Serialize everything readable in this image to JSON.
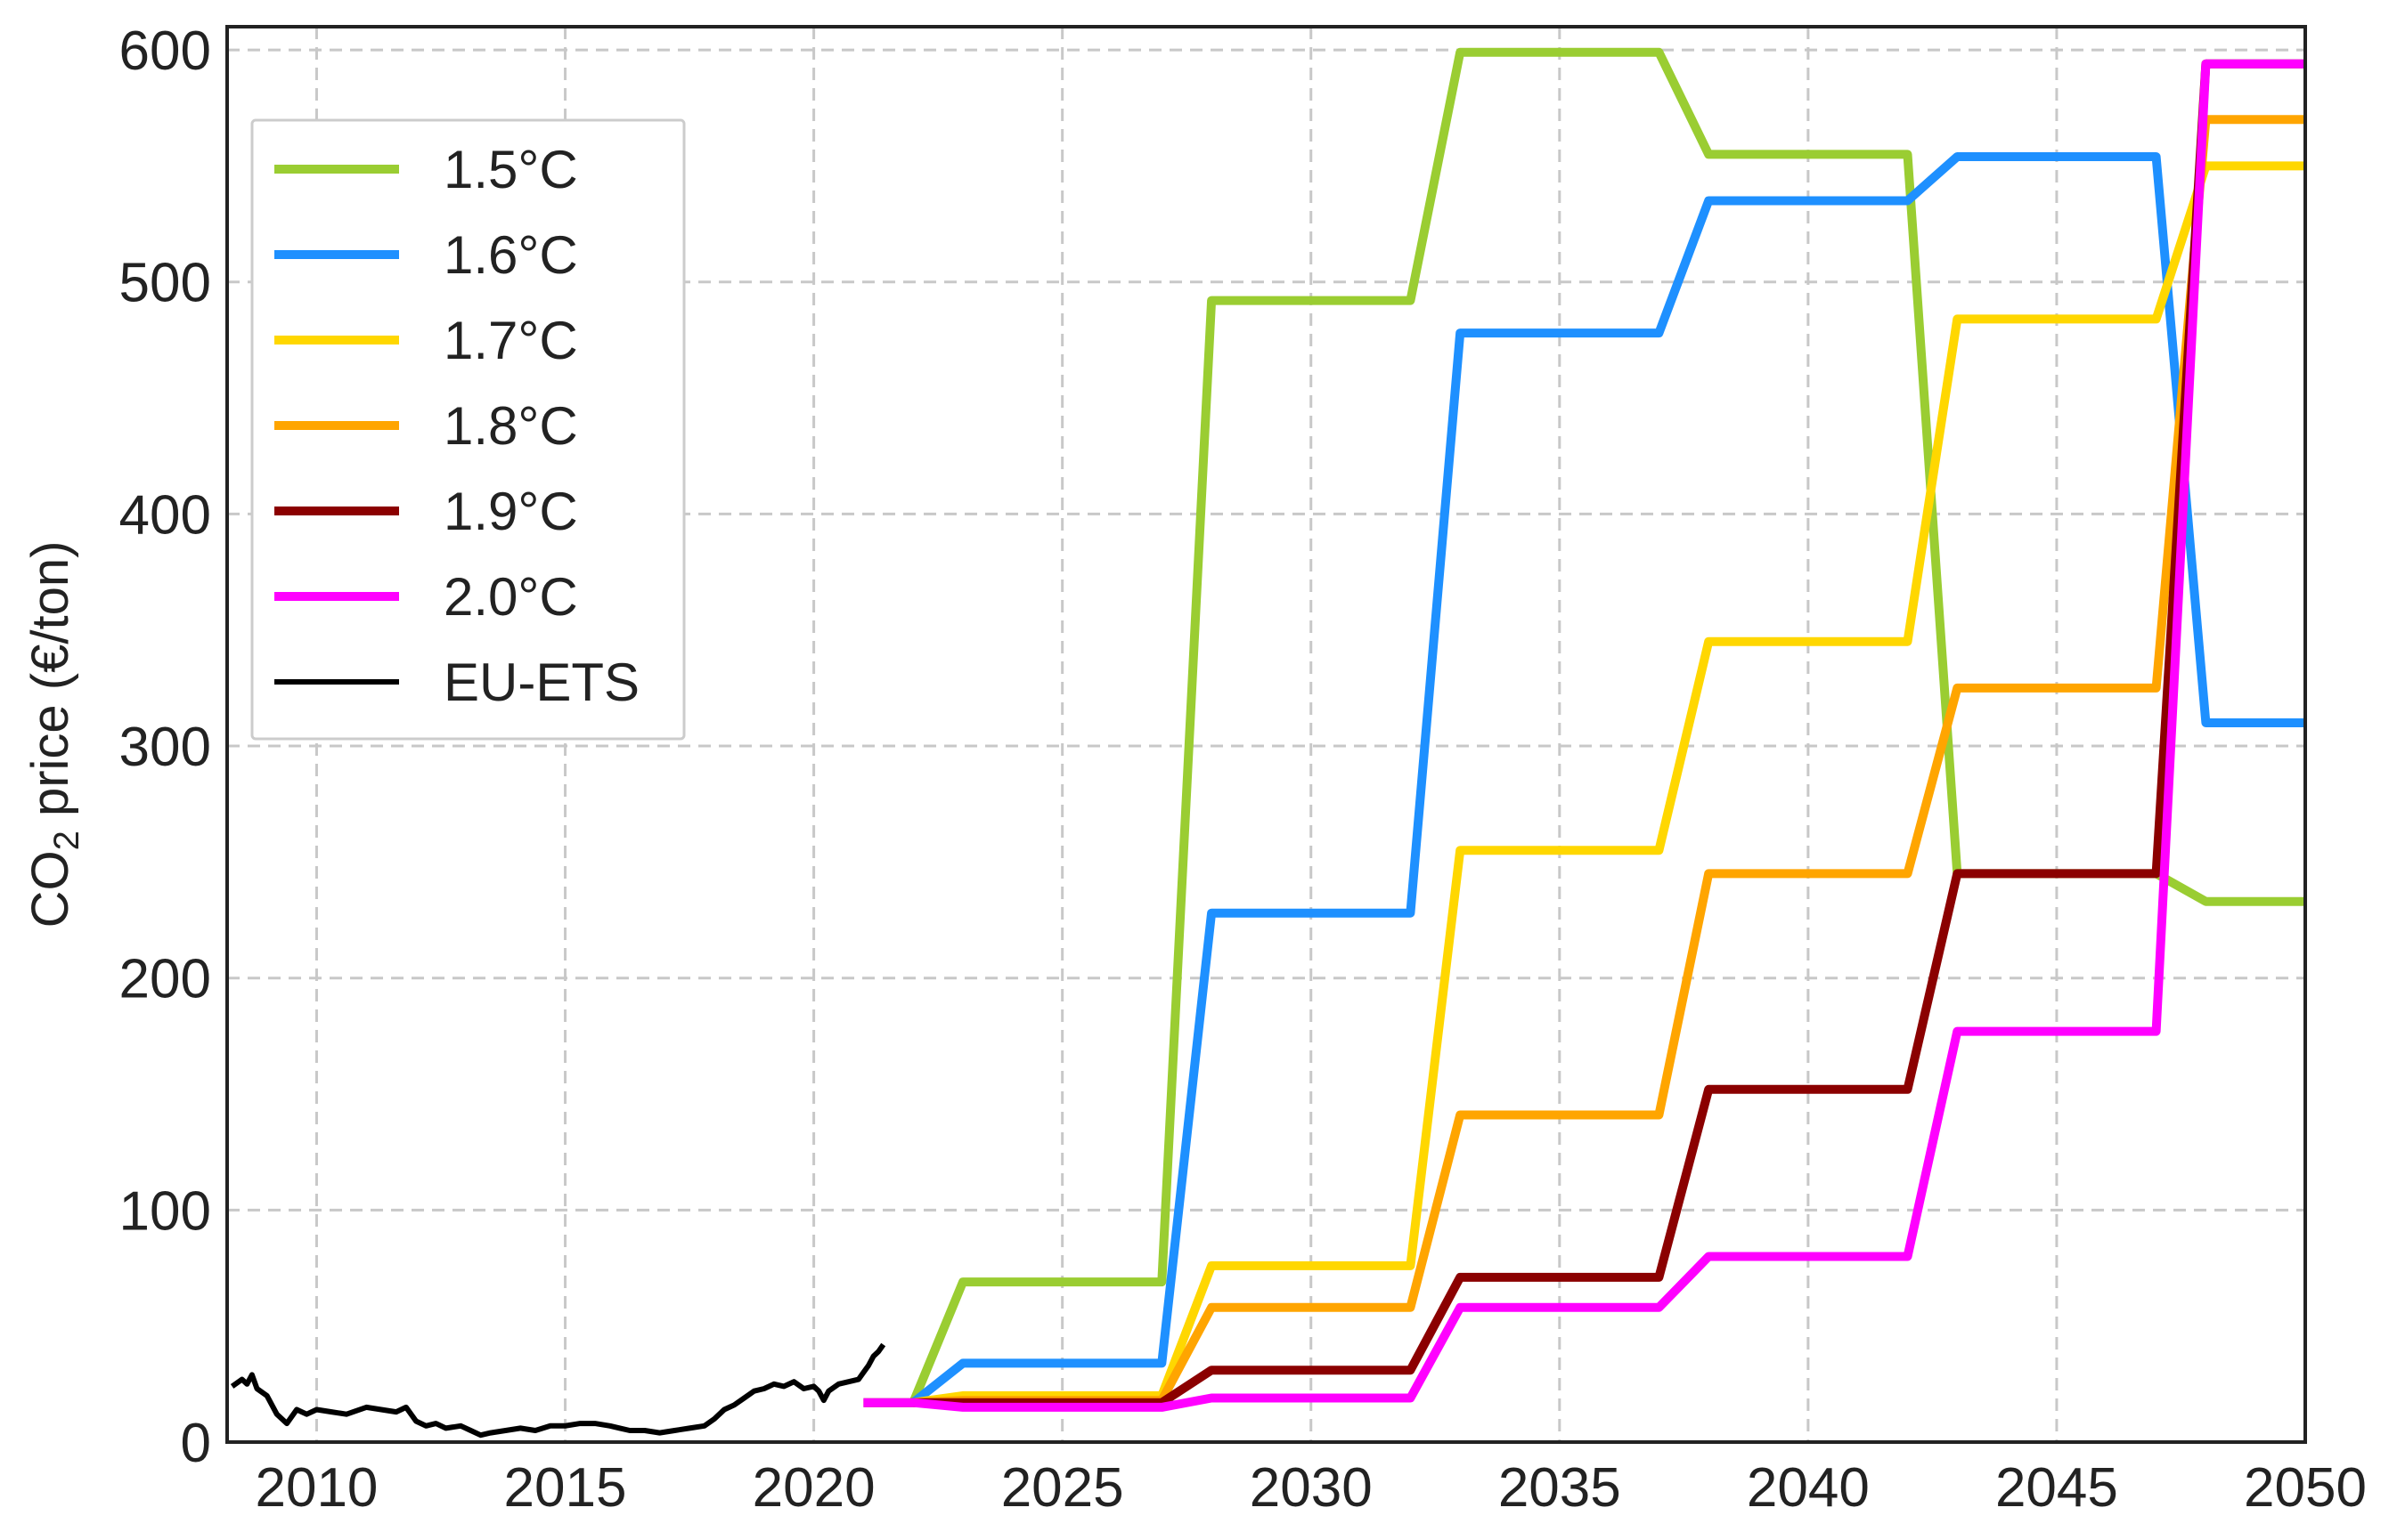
{
  "chart_data": {
    "type": "line",
    "title": "",
    "xlabel": "",
    "ylabel": {
      "main": "CO",
      "sub": "2",
      "rest": " price (€/ton)"
    },
    "xlim": [
      2008.2,
      2050
    ],
    "ylim": [
      0,
      610
    ],
    "xticks": [
      2010,
      2015,
      2020,
      2025,
      2030,
      2035,
      2040,
      2045,
      2050
    ],
    "xtick_labels": [
      "2010",
      "2015",
      "2020",
      "2025",
      "2030",
      "2035",
      "2040",
      "2045",
      "2050"
    ],
    "yticks": [
      0,
      100,
      200,
      300,
      400,
      500,
      600
    ],
    "ytick_labels": [
      "0",
      "100",
      "200",
      "300",
      "400",
      "500",
      "600"
    ],
    "grid": true,
    "legend_position": "upper-left",
    "series": [
      {
        "name": "1.5°C",
        "color": "#9acd32",
        "x": [
          2022,
          2023,
          2027,
          2028,
          2032,
          2033,
          2037,
          2038,
          2042,
          2043,
          2047,
          2048,
          2050
        ],
        "y": [
          17,
          69,
          69,
          492,
          492,
          599,
          599,
          555,
          555,
          245,
          245,
          233,
          233
        ]
      },
      {
        "name": "1.6°C",
        "color": "#1e90ff",
        "x": [
          2022,
          2023,
          2027,
          2028,
          2032,
          2033,
          2037,
          2038,
          2042,
          2043,
          2047,
          2048,
          2050
        ],
        "y": [
          17,
          34,
          34,
          228,
          228,
          478,
          478,
          535,
          535,
          554,
          554,
          310,
          310
        ]
      },
      {
        "name": "1.7°C",
        "color": "#ffd700",
        "x": [
          2022,
          2023,
          2027,
          2028,
          2032,
          2033,
          2037,
          2038,
          2042,
          2043,
          2047,
          2048,
          2050
        ],
        "y": [
          17,
          20,
          20,
          76,
          76,
          255,
          255,
          345,
          345,
          484,
          484,
          550,
          550
        ]
      },
      {
        "name": "1.8°C",
        "color": "#ffa500",
        "x": [
          2022,
          2023,
          2027,
          2028,
          2032,
          2033,
          2037,
          2038,
          2042,
          2043,
          2047,
          2048,
          2050
        ],
        "y": [
          17,
          18,
          18,
          58,
          58,
          141,
          141,
          245,
          245,
          325,
          325,
          570,
          570
        ]
      },
      {
        "name": "1.9°C",
        "color": "#8b0000",
        "x": [
          2021,
          2022,
          2023,
          2027,
          2028,
          2032,
          2033,
          2037,
          2038,
          2042,
          2043,
          2047,
          2048,
          2050
        ],
        "y": [
          17,
          17,
          17,
          17,
          31,
          31,
          71,
          71,
          152,
          152,
          245,
          245,
          594,
          594
        ]
      },
      {
        "name": "2.0°C",
        "color": "#ff00ff",
        "x": [
          2021,
          2022,
          2023,
          2027,
          2028,
          2032,
          2033,
          2037,
          2038,
          2042,
          2043,
          2047,
          2048,
          2050
        ],
        "y": [
          17,
          17,
          15,
          15,
          19,
          19,
          58,
          58,
          80,
          80,
          177,
          177,
          594,
          594
        ]
      },
      {
        "name": "EU-ETS",
        "color": "#000000",
        "thin": true,
        "x": [
          2008.3,
          2008.5,
          2008.6,
          2008.7,
          2008.8,
          2009.0,
          2009.2,
          2009.4,
          2009.6,
          2009.8,
          2010.0,
          2010.3,
          2010.6,
          2011.0,
          2011.3,
          2011.6,
          2011.8,
          2012.0,
          2012.2,
          2012.4,
          2012.6,
          2012.9,
          2013.1,
          2013.3,
          2013.5,
          2013.8,
          2014.1,
          2014.4,
          2014.7,
          2015.0,
          2015.3,
          2015.6,
          2015.9,
          2016.1,
          2016.3,
          2016.6,
          2016.9,
          2017.2,
          2017.5,
          2017.8,
          2018.0,
          2018.2,
          2018.4,
          2018.6,
          2018.8,
          2019.0,
          2019.2,
          2019.4,
          2019.6,
          2019.8,
          2020.0,
          2020.1,
          2020.2,
          2020.3,
          2020.5,
          2020.7,
          2020.9,
          2021.0,
          2021.1,
          2021.2,
          2021.3,
          2021.4
        ],
        "y": [
          24,
          27,
          25,
          29,
          23,
          20,
          12,
          8,
          14,
          12,
          14,
          13,
          12,
          15,
          14,
          13,
          15,
          9,
          7,
          8,
          6,
          7,
          5,
          3,
          4,
          5,
          6,
          5,
          7,
          7,
          8,
          8,
          7,
          6,
          5,
          5,
          4,
          5,
          6,
          7,
          10,
          14,
          16,
          19,
          22,
          23,
          25,
          24,
          26,
          23,
          24,
          22,
          18,
          22,
          25,
          26,
          27,
          30,
          33,
          37,
          39,
          42
        ]
      }
    ]
  }
}
